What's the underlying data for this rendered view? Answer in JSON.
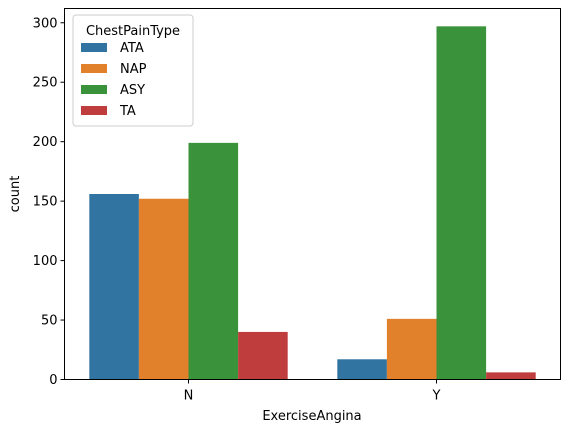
{
  "chart_data": {
    "type": "bar",
    "categories": [
      "N",
      "Y"
    ],
    "series": [
      {
        "name": "ATA",
        "values": [
          156,
          17
        ],
        "color": "#3274a1"
      },
      {
        "name": "NAP",
        "values": [
          152,
          51
        ],
        "color": "#e1812c"
      },
      {
        "name": "ASY",
        "values": [
          199,
          297
        ],
        "color": "#3a923a"
      },
      {
        "name": "TA",
        "values": [
          40,
          6
        ],
        "color": "#c03d3e"
      }
    ],
    "xlabel": "ExerciseAngina",
    "ylabel": "count",
    "ylim": [
      0,
      312
    ],
    "yticks": [
      0,
      50,
      100,
      150,
      200,
      250,
      300
    ],
    "grid": false,
    "legend": {
      "title": "ChestPainType",
      "placement": "top-left"
    }
  }
}
